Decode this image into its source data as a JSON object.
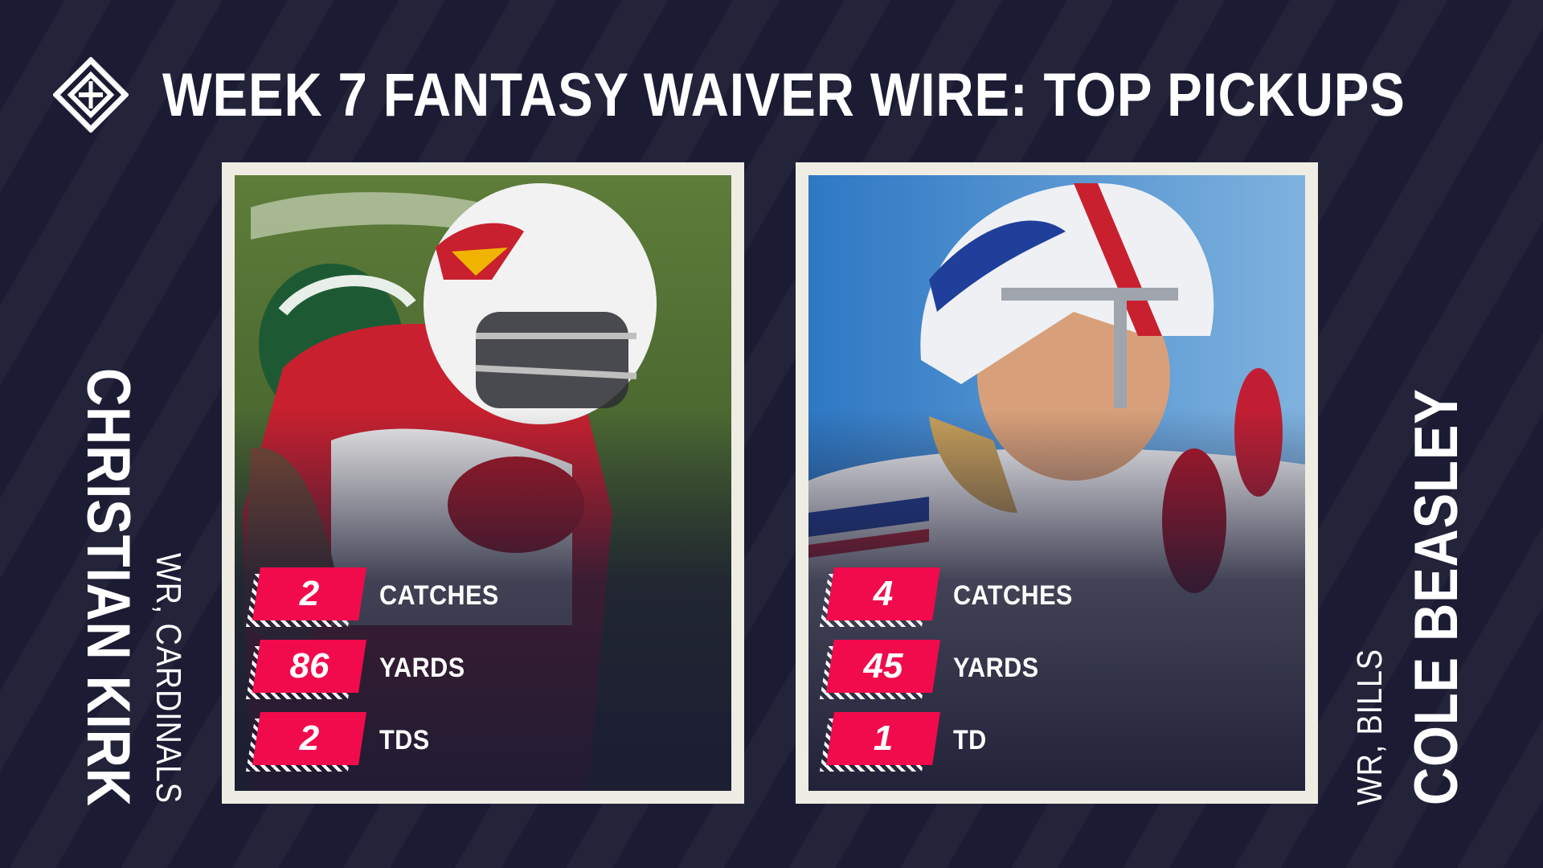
{
  "headline": "WEEK 7 FANTASY WAIVER WIRE: TOP PICKUPS",
  "brand_logo_icon": "sporting-news-logo-icon",
  "colors": {
    "background": "#1b1c33",
    "accent_red": "#f20b4c",
    "card_frame": "#efece4"
  },
  "players": [
    {
      "name": "CHRISTIAN KIRK",
      "position": "WR, CARDINALS",
      "photo_icon": "cardinals-player-photo",
      "stats": [
        {
          "value": "2",
          "label": "CATCHES"
        },
        {
          "value": "86",
          "label": "YARDS"
        },
        {
          "value": "2",
          "label": "TDS"
        }
      ]
    },
    {
      "name": "COLE BEASLEY",
      "position": "WR, BILLS",
      "photo_icon": "bills-player-photo",
      "stats": [
        {
          "value": "4",
          "label": "CATCHES"
        },
        {
          "value": "45",
          "label": "YARDS"
        },
        {
          "value": "1",
          "label": "TD"
        }
      ]
    }
  ]
}
